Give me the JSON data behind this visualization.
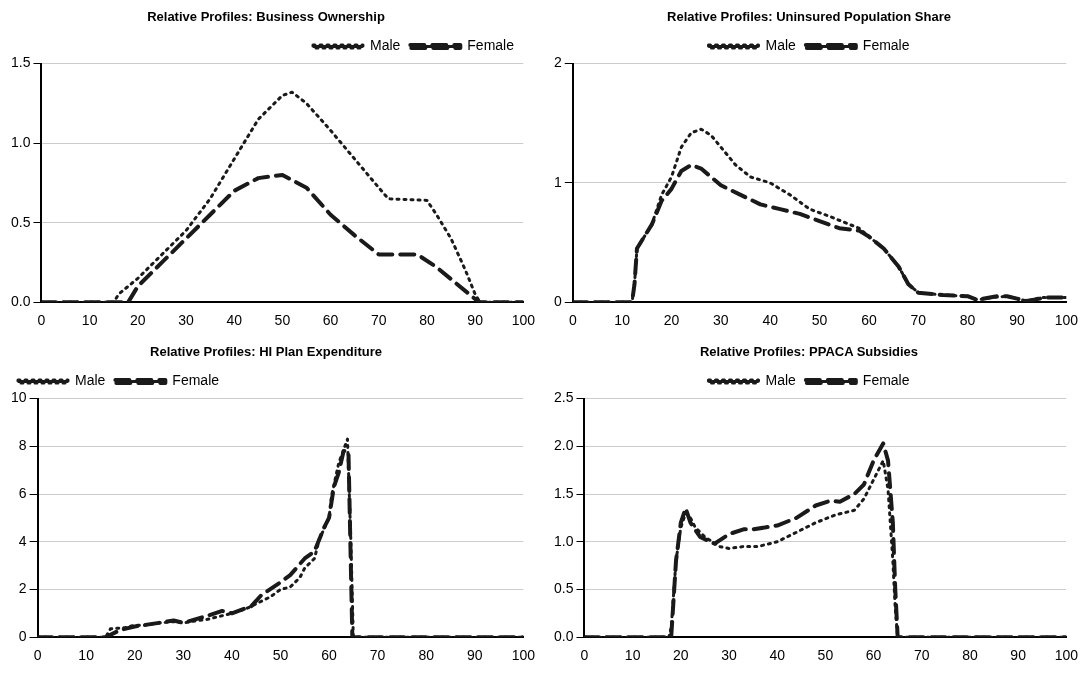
{
  "chart_data": [
    {
      "type": "line",
      "title": "Relative Profiles: Business Ownership",
      "xlim": [
        0,
        100
      ],
      "xticks": [
        0,
        10,
        20,
        30,
        40,
        50,
        60,
        70,
        80,
        90,
        100
      ],
      "ylim": [
        0,
        1.5
      ],
      "yticks": [
        {
          "value": 0,
          "label": "0.0"
        },
        {
          "value": 0.5,
          "label": "0.5"
        },
        {
          "value": 1,
          "label": "1.0"
        },
        {
          "value": 1.5,
          "label": "1.5"
        }
      ],
      "grid": "y",
      "legend": "top right",
      "series": [
        {
          "name": "Male",
          "color": "#1a1a1a",
          "line_style": "dotted",
          "x": [
            0,
            15,
            16,
            20,
            25,
            30,
            35,
            40,
            45,
            50,
            52,
            55,
            60,
            65,
            70,
            72,
            80,
            82,
            85,
            88,
            90,
            91,
            100
          ],
          "values": [
            0,
            0,
            0.05,
            0.15,
            0.3,
            0.45,
            0.65,
            0.9,
            1.15,
            1.3,
            1.32,
            1.25,
            1.08,
            0.9,
            0.72,
            0.65,
            0.64,
            0.55,
            0.4,
            0.2,
            0.05,
            0,
            0
          ]
        },
        {
          "name": "Female",
          "color": "#1a1a1a",
          "line_style": "dashed",
          "x": [
            0,
            18,
            20,
            25,
            30,
            35,
            40,
            45,
            50,
            55,
            60,
            65,
            70,
            75,
            78,
            82,
            86,
            90,
            91,
            100
          ],
          "values": [
            0,
            0,
            0.1,
            0.25,
            0.4,
            0.55,
            0.7,
            0.78,
            0.8,
            0.72,
            0.55,
            0.42,
            0.3,
            0.3,
            0.3,
            0.22,
            0.12,
            0.02,
            0,
            0
          ]
        }
      ]
    },
    {
      "type": "line",
      "title": "Relative Profiles: Uninsured Population Share",
      "xlim": [
        0,
        100
      ],
      "xticks": [
        0,
        10,
        20,
        30,
        40,
        50,
        60,
        70,
        80,
        90,
        100
      ],
      "ylim": [
        0,
        2
      ],
      "yticks": [
        0,
        1,
        2
      ],
      "grid": "y",
      "legend": "top",
      "series": [
        {
          "name": "Male",
          "color": "#1a1a1a",
          "line_style": "dotted",
          "x": [
            0,
            12,
            12.5,
            13,
            16,
            18,
            20,
            22,
            24,
            26,
            28,
            30,
            33,
            36,
            40,
            44,
            48,
            52,
            58,
            60,
            63,
            66,
            68,
            70,
            75,
            80,
            82,
            85,
            88,
            90,
            92,
            95,
            100
          ],
          "values": [
            0,
            0,
            0.15,
            0.45,
            0.65,
            0.9,
            1.05,
            1.3,
            1.42,
            1.45,
            1.4,
            1.3,
            1.15,
            1.05,
            1,
            0.9,
            0.78,
            0.72,
            0.62,
            0.55,
            0.45,
            0.3,
            0.15,
            0.08,
            0.06,
            0.05,
            0.02,
            0.04,
            0.05,
            0.03,
            0.01,
            0.04,
            0.04
          ]
        },
        {
          "name": "Female",
          "color": "#1a1a1a",
          "line_style": "dashed",
          "x": [
            0,
            12,
            12.5,
            13,
            16,
            18,
            20,
            22,
            24,
            26,
            28,
            30,
            34,
            38,
            42,
            46,
            50,
            54,
            58,
            60,
            63,
            66,
            68,
            70,
            75,
            80,
            82,
            86,
            88,
            90,
            92,
            96,
            100
          ],
          "values": [
            0,
            0,
            0.15,
            0.45,
            0.65,
            0.85,
            0.95,
            1.1,
            1.15,
            1.12,
            1.05,
            0.98,
            0.9,
            0.82,
            0.78,
            0.74,
            0.68,
            0.62,
            0.6,
            0.55,
            0.45,
            0.3,
            0.15,
            0.08,
            0.06,
            0.05,
            0.02,
            0.05,
            0.05,
            0.03,
            0.01,
            0.04,
            0.04
          ]
        }
      ]
    },
    {
      "type": "line",
      "title": "Relative Profiles: HI Plan Expenditure",
      "xlim": [
        0,
        100
      ],
      "xticks": [
        0,
        10,
        20,
        30,
        40,
        50,
        60,
        70,
        80,
        90,
        100
      ],
      "ylim": [
        0,
        10
      ],
      "yticks": [
        0,
        2,
        4,
        6,
        8,
        10
      ],
      "grid": "y",
      "legend": "top left",
      "series": [
        {
          "name": "Male",
          "color": "#1a1a1a",
          "line_style": "dotted",
          "x": [
            0,
            14,
            15,
            18,
            20,
            22,
            25,
            28,
            30,
            33,
            35,
            38,
            40,
            43,
            45,
            48,
            50,
            52,
            54,
            55,
            57,
            58,
            60,
            60.5,
            62,
            63.8,
            64.5,
            65,
            100
          ],
          "values": [
            0,
            0,
            0.35,
            0.4,
            0.5,
            0.5,
            0.6,
            0.65,
            0.6,
            0.7,
            0.75,
            0.9,
            1,
            1.2,
            1.4,
            1.7,
            2,
            2.1,
            2.5,
            2.9,
            3.3,
            4.1,
            5,
            5.9,
            7.3,
            8.3,
            4,
            0,
            0
          ]
        },
        {
          "name": "Female",
          "color": "#1a1a1a",
          "line_style": "dashed",
          "x": [
            0,
            14,
            17,
            20,
            25,
            28,
            30,
            35,
            38,
            40,
            44,
            46,
            50,
            52,
            55,
            57,
            59,
            60,
            61,
            62,
            63,
            64,
            64.8,
            65,
            100
          ],
          "values": [
            0,
            0,
            0.3,
            0.45,
            0.6,
            0.7,
            0.6,
            0.9,
            1.1,
            1,
            1.3,
            1.75,
            2.3,
            2.6,
            3.3,
            3.6,
            4.6,
            5,
            6.3,
            6.9,
            7.8,
            7.8,
            0,
            0,
            0
          ]
        }
      ]
    },
    {
      "type": "line",
      "title": "Relative Profiles: PPACA Subsidies",
      "xlim": [
        0,
        100
      ],
      "xticks": [
        0,
        10,
        20,
        30,
        40,
        50,
        60,
        70,
        80,
        90,
        100
      ],
      "ylim": [
        0,
        2.5
      ],
      "yticks": [
        {
          "value": 0,
          "label": "0.0"
        },
        {
          "value": 0.5,
          "label": "0.5"
        },
        {
          "value": 1,
          "label": "1.0"
        },
        {
          "value": 1.5,
          "label": "1.5"
        },
        {
          "value": 2,
          "label": "2.0"
        },
        {
          "value": 2.5,
          "label": "2.5"
        }
      ],
      "grid": "y",
      "legend": "top",
      "series": [
        {
          "name": "Male",
          "color": "#1a1a1a",
          "line_style": "dotted",
          "x": [
            0,
            17.5,
            18,
            19,
            20,
            21,
            22,
            23,
            25,
            28,
            30,
            33,
            36,
            40,
            44,
            48,
            52,
            56,
            58,
            59,
            60,
            61,
            62,
            63,
            64,
            64.5,
            65,
            100
          ],
          "values": [
            0,
            0,
            0.1,
            0.8,
            1.15,
            1.3,
            1.25,
            1.15,
            1.05,
            0.95,
            0.93,
            0.95,
            0.95,
            1,
            1.1,
            1.2,
            1.28,
            1.33,
            1.45,
            1.55,
            1.65,
            1.75,
            1.85,
            1.55,
            0.8,
            0.3,
            0,
            0
          ]
        },
        {
          "name": "Female",
          "color": "#1a1a1a",
          "line_style": "dashed",
          "x": [
            0,
            18,
            19,
            20,
            21,
            22,
            24,
            27,
            30,
            33,
            35,
            40,
            44,
            48,
            51,
            53,
            56,
            58,
            60,
            62,
            63,
            64,
            64.5,
            65,
            100
          ],
          "values": [
            0,
            0,
            0.8,
            1.2,
            1.35,
            1.2,
            1.05,
            0.98,
            1.08,
            1.13,
            1.13,
            1.17,
            1.25,
            1.38,
            1.43,
            1.42,
            1.5,
            1.6,
            1.85,
            2.03,
            1.85,
            1.2,
            0.5,
            0,
            0
          ]
        }
      ]
    }
  ]
}
